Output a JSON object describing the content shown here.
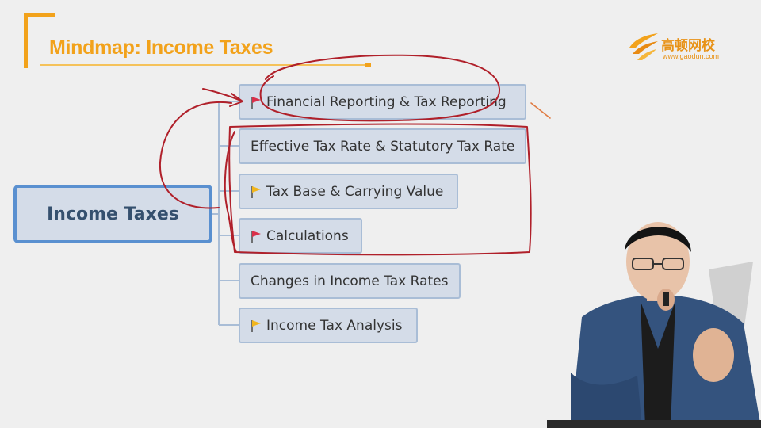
{
  "header": {
    "title": "Mindmap: Income Taxes"
  },
  "logo": {
    "name": "高顿网校",
    "url": "www.gaodun.com"
  },
  "mindmap": {
    "root": "Income Taxes",
    "branches": [
      {
        "label": "Financial Reporting & Tax Reporting",
        "flag": "red-flag-icon"
      },
      {
        "label": "Effective Tax Rate & Statutory Tax Rate",
        "flag": ""
      },
      {
        "label": "Tax Base & Carrying Value",
        "flag": "yellow-flag-icon"
      },
      {
        "label": "Calculations",
        "flag": "red-flag-icon"
      },
      {
        "label": "Changes in Income Tax Rates",
        "flag": ""
      },
      {
        "label": "Income Tax Analysis",
        "flag": "yellow-flag-icon"
      }
    ]
  },
  "colors": {
    "accent": "#f2a21b",
    "node_fill": "#d4dce8",
    "node_border": "#a9bdd6",
    "root_border": "#5a90d0",
    "annotation": "#b0202a",
    "red_flag": "#d9304a",
    "yellow_flag": "#f1b51c"
  }
}
